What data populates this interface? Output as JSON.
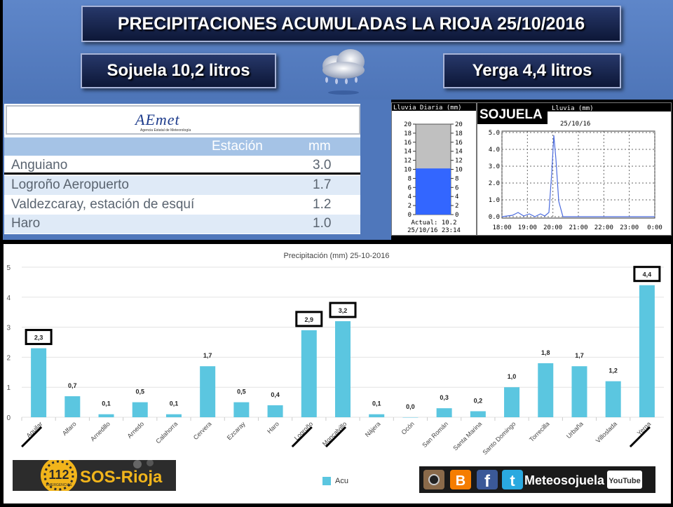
{
  "header": {
    "title": "PRECIPITACIONES ACUMULADAS LA RIOJA 25/10/2016",
    "sojuela_total": "Sojuela 10,2 litros",
    "yerga_total": "Yerga 4,4 litros",
    "weather_icon": "cloud-rain-icon"
  },
  "aemet": {
    "logo_text": "AEmet",
    "logo_subtitle": "Agencia Estatal de Meteorología",
    "col_station": "Estación",
    "col_mm": "mm",
    "rows": [
      {
        "name": "Anguiano",
        "mm": "3.0"
      },
      {
        "name": "Logroño Aeropuerto",
        "mm": "1.7"
      },
      {
        "name": "Valdezcaray, estación de esquí",
        "mm": "1.2"
      },
      {
        "name": "Haro",
        "mm": "1.0"
      }
    ]
  },
  "gauge": {
    "title": "Lluvia Diaria (mm)",
    "ticks": [
      "20",
      "18",
      "16",
      "14",
      "12",
      "10",
      "8",
      "6",
      "4",
      "2",
      "0"
    ],
    "value": 10.2,
    "max": 20,
    "actual_text": "Actual: 10.2",
    "timestamp": "25/10/16 23:14",
    "fill_color": "#3366ff"
  },
  "station_chart": {
    "label": "SOJUELA",
    "title": "Lluvia (mm)",
    "date": "25/10/16",
    "y_ticks": [
      "5.0",
      "4.0",
      "3.0",
      "2.0",
      "1.0",
      "0.0"
    ],
    "x_ticks": [
      "18:00",
      "19:00",
      "20:00",
      "21:00",
      "22:00",
      "23:00",
      "0:00"
    ],
    "line_color": "#4b6bde"
  },
  "chart_data": {
    "type": "bar",
    "title": "Precipitación (mm) 25-10-2016",
    "categories": [
      "Aguilar",
      "Alfaro",
      "Arnedillo",
      "Arnedo",
      "Calahorra",
      "Cervera",
      "Ezcaray",
      "Haro",
      "Logroño",
      "Moncalvillo",
      "Nájera",
      "Ocón",
      "San Román",
      "Santa Marina",
      "Santo Domingo",
      "Torrecilla",
      "Urbaña",
      "Villoslada",
      "Yerga"
    ],
    "series": [
      {
        "name": "Acu",
        "values": [
          2.3,
          0.7,
          0.1,
          0.5,
          0.1,
          1.7,
          0.5,
          0.4,
          2.9,
          3.2,
          0.1,
          0.0,
          0.3,
          0.2,
          1.0,
          1.8,
          1.7,
          1.2,
          4.4
        ]
      }
    ],
    "value_labels": [
      "2,3",
      "0,7",
      "0,1",
      "0,5",
      "0,1",
      "1,7",
      "0,5",
      "0,4",
      "2,9",
      "3,2",
      "0,1",
      "0,0",
      "0,3",
      "0,2",
      "1,0",
      "1,8",
      "1,7",
      "1,2",
      "4,4"
    ],
    "boxed_labels": [
      "Aguilar",
      "Logroño",
      "Moncalvillo",
      "Yerga"
    ],
    "y_ticks": [
      "0",
      "1",
      "2",
      "3",
      "4",
      "5"
    ],
    "ylim": [
      0,
      5
    ],
    "legend": "bottom-center",
    "bar_color": "#5bc6e0"
  },
  "footer": {
    "sos_number": "112",
    "sos_small": "EMERGENCIAS",
    "sos_text": "SOS-Rioja",
    "social_text": "Meteosojuela",
    "youtube": "YouTube",
    "icons": [
      "instagram-icon",
      "blogger-icon",
      "facebook-icon",
      "twitter-icon",
      "youtube-icon"
    ]
  }
}
